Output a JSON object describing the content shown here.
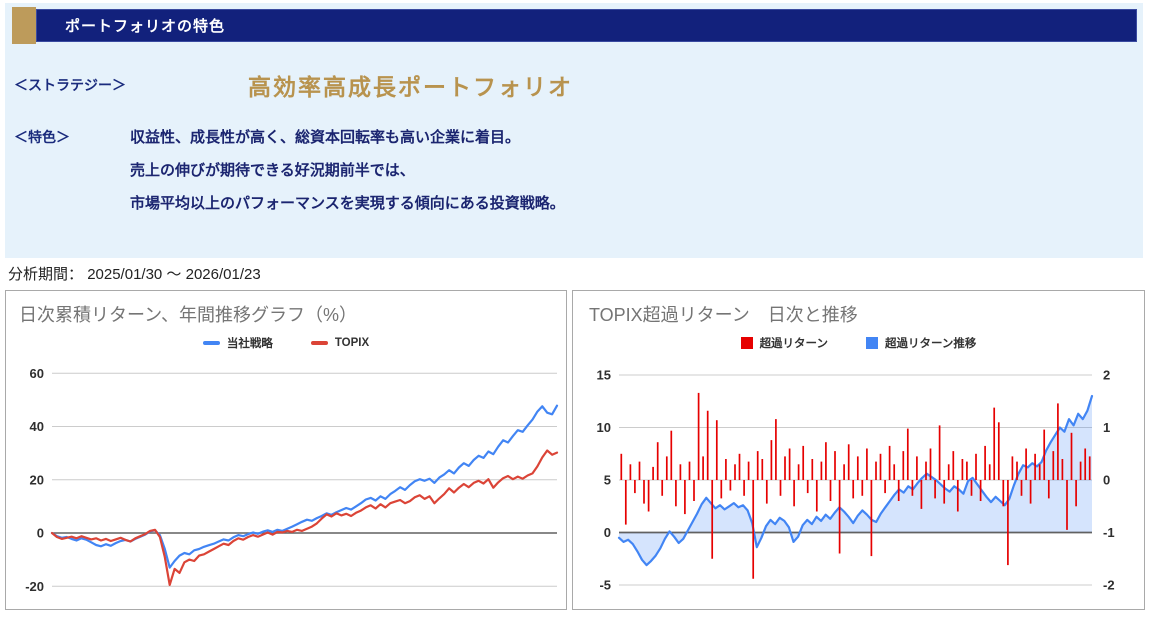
{
  "header": {
    "title": "ポートフォリオの特色"
  },
  "strategy": {
    "label": "＜ストラテジー＞",
    "title": "高効率高成長ポートフォリオ"
  },
  "features": {
    "label": "＜特色＞",
    "lines": [
      "収益性、成長性が高く、総資本回転率も高い企業に着目。",
      "売上の伸びが期待できる好況期前半では、",
      "市場平均以上のパフォーマンスを実現する傾向にある投資戦略。"
    ]
  },
  "analysis_period": {
    "label": "分析期間：",
    "value": "2025/01/30 ～ 2026/01/23"
  },
  "colors": {
    "panel_bg": "#E6F2FB",
    "navy": "#12217C",
    "gold": "#BD9B5B",
    "gold_title": "#B8934E",
    "body_text_navy": "#1B2570",
    "chart_title_gray": "#757575",
    "grid": "#cccccc",
    "zero_line": "#616161",
    "blue_series": "#4285F4",
    "red_series": "#DB4437",
    "bar_red": "#E60000",
    "area_fill": "rgba(66,133,244,0.22)"
  },
  "chart_data": [
    {
      "type": "line",
      "title": "日次累積リターン、年間推移グラフ（%）",
      "legend_position": "top",
      "grid": true,
      "x_range_note": "daily, 2025/01/30 to 2026/01/23, no x tick labels shown",
      "ylim": [
        -20,
        60
      ],
      "yticks": [
        60,
        40,
        20,
        0,
        -20
      ],
      "series": [
        {
          "name": "当社戦略",
          "color": "#4285F4",
          "values": [
            0,
            -1.2,
            -1.8,
            -1.5,
            -2.2,
            -2.8,
            -2,
            -2.5,
            -3.5,
            -4.5,
            -5,
            -4.2,
            -4.8,
            -3.8,
            -3,
            -2.6,
            -3.2,
            -2.2,
            -1.4,
            -0.6,
            0.6,
            1,
            -0.8,
            -6,
            -13,
            -10.5,
            -8.5,
            -7.5,
            -8,
            -6.5,
            -6,
            -5.2,
            -4.6,
            -4,
            -3.2,
            -2.4,
            -2.8,
            -1.6,
            -0.8,
            -1.2,
            -0.4,
            0.2,
            -0.3,
            0.5,
            1,
            0.4,
            1.2,
            0.8,
            1.6,
            2.4,
            3.3,
            4.2,
            5,
            4.6,
            5.6,
            6.4,
            7.4,
            6.8,
            7.8,
            8.6,
            9.4,
            8.8,
            10,
            11.2,
            12.6,
            13.2,
            12.2,
            13.8,
            12.8,
            14.6,
            15.8,
            17.2,
            16.2,
            18,
            19.4,
            20.2,
            19.6,
            20.4,
            18.8,
            20.8,
            22,
            23.6,
            22.4,
            24.6,
            26.2,
            25.2,
            27.4,
            29,
            28.2,
            30.6,
            29.6,
            32.4,
            34.8,
            34,
            36.4,
            38.6,
            38,
            40.4,
            42.6,
            45.6,
            47.6,
            45.2,
            44.6,
            47.8
          ]
        },
        {
          "name": "TOPIX",
          "color": "#DB4437",
          "values": [
            0,
            -1.5,
            -2.2,
            -1.8,
            -1.4,
            -2,
            -1.2,
            -1.8,
            -2.4,
            -2,
            -2.8,
            -2.2,
            -3,
            -2.4,
            -1.8,
            -2.6,
            -3.2,
            -2,
            -1.2,
            -0.4,
            0.8,
            1.2,
            -1.5,
            -9,
            -19.5,
            -13.5,
            -15,
            -11,
            -10,
            -10.5,
            -8.5,
            -8,
            -7,
            -6,
            -5,
            -4,
            -4.5,
            -3,
            -2,
            -2.5,
            -1.5,
            -0.8,
            -1.4,
            -0.6,
            0.2,
            -0.6,
            0.4,
            0.2,
            0.8,
            0.4,
            1.2,
            0.8,
            1.6,
            2.4,
            3.6,
            5.4,
            7,
            6.2,
            7.4,
            6.6,
            7.2,
            6.4,
            7.6,
            8.4,
            9.6,
            10.4,
            9.2,
            10.8,
            9.6,
            11.2,
            11.8,
            12.4,
            11.2,
            12,
            13.4,
            14.2,
            12.8,
            13.8,
            11.2,
            13,
            14.6,
            16.8,
            15.2,
            17,
            18.4,
            17.2,
            18.8,
            19.6,
            18.6,
            20.2,
            17,
            19,
            20.6,
            21.4,
            20.2,
            21.2,
            20.4,
            21.6,
            22.4,
            25,
            28.4,
            31,
            29.4,
            30.2
          ]
        }
      ]
    },
    {
      "type": "combo-bar-area-line",
      "title": "TOPIX超過リターン　日次と推移",
      "legend_position": "top",
      "grid": true,
      "ylim_left": [
        -5,
        15
      ],
      "yticks_left": [
        15,
        10,
        5,
        0,
        -5
      ],
      "ylim_right": [
        -2,
        2
      ],
      "yticks_right": [
        2,
        1,
        0,
        -1,
        -2
      ],
      "axis_note": "bars use right axis (0 aligned with left-axis 5); cumulative line uses left axis",
      "series": [
        {
          "name": "超過リターン",
          "type": "bar",
          "axis": "right",
          "color": "#E60000",
          "values": [
            0.5,
            -0.85,
            0.3,
            -0.25,
            0.35,
            -0.45,
            -0.6,
            0.25,
            0.72,
            -0.3,
            0.45,
            0.94,
            -0.5,
            0.3,
            -0.65,
            0.35,
            -0.4,
            1.66,
            0.45,
            1.32,
            -1.5,
            1.14,
            -0.35,
            0.4,
            -0.2,
            0.3,
            0.5,
            -0.3,
            0.35,
            -1.88,
            0.55,
            0.4,
            -0.45,
            0.76,
            1.16,
            -0.3,
            0.45,
            0.6,
            -0.5,
            0.3,
            0.65,
            -0.25,
            0.4,
            -0.6,
            0.35,
            0.72,
            -0.4,
            0.55,
            -1.4,
            0.3,
            0.68,
            -0.35,
            0.45,
            -0.3,
            0.6,
            -1.45,
            0.35,
            0.5,
            -0.25,
            0.65,
            0.3,
            -0.4,
            0.55,
            0.98,
            -0.3,
            0.45,
            -0.55,
            0.35,
            0.6,
            -0.35,
            1.04,
            -0.45,
            0.3,
            0.55,
            -0.6,
            0.4,
            0.35,
            -0.3,
            0.5,
            -0.4,
            0.65,
            0.3,
            1.38,
            1.1,
            -0.5,
            -1.62,
            0.45,
            0.35,
            -0.3,
            0.6,
            -0.45,
            0.5,
            0.3,
            0.96,
            -0.35,
            0.55,
            1.46,
            0.4,
            -0.95,
            0.9,
            -0.5,
            0.35,
            0.6,
            0.45
          ]
        },
        {
          "name": "超過リターン推移",
          "type": "area-line",
          "axis": "left",
          "color": "#4285F4",
          "fill": "rgba(66,133,244,0.22)",
          "values": [
            -0.5,
            -0.9,
            -0.7,
            -1.1,
            -1.8,
            -2.6,
            -3.1,
            -2.7,
            -2.2,
            -1.5,
            -0.6,
            0.1,
            -0.4,
            -1,
            -0.6,
            0.2,
            1,
            1.8,
            2.7,
            3.3,
            2.8,
            2.3,
            2.6,
            2.2,
            2.5,
            2.8,
            2.4,
            2.6,
            2.1,
            0.9,
            -1.4,
            -0.5,
            0.6,
            1.2,
            0.8,
            1.4,
            1.1,
            0.5,
            -0.9,
            -0.4,
            0.7,
            1.2,
            0.8,
            1.5,
            1.1,
            1.7,
            1.3,
            1.9,
            2.4,
            2,
            1.5,
            0.9,
            1.6,
            2.1,
            1.7,
            1.2,
            1,
            1.8,
            2.4,
            3,
            3.6,
            4.1,
            3.8,
            4.4,
            4.1,
            4.7,
            5.2,
            5.6,
            5.3,
            5,
            4.6,
            4.2,
            3.9,
            4.4,
            4.1,
            3.7,
            4.9,
            5.2,
            4.6,
            4,
            3.4,
            2.9,
            3.4,
            3,
            2.6,
            3.2,
            4.5,
            5.6,
            6.4,
            6.2,
            6.6,
            6.3,
            6.7,
            7.8,
            8.6,
            9.3,
            10,
            9.6,
            10.8,
            10.2,
            11.3,
            10.8,
            11.6,
            13
          ]
        }
      ]
    }
  ]
}
